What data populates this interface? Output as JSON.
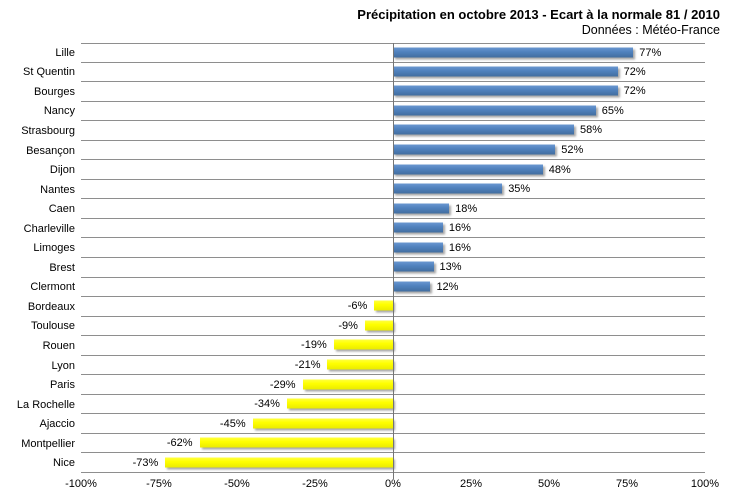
{
  "header": {
    "title": "Précipitation en octobre 2013 - Ecart à la normale 81 / 2010",
    "subtitle": "Données : Météo-France"
  },
  "chart_data": {
    "type": "bar",
    "orientation": "horizontal",
    "title": "Précipitation en octobre 2013 - Ecart à la normale 81 / 2010",
    "subtitle": "Données : Météo-France",
    "categories": [
      "Lille",
      "St Quentin",
      "Bourges",
      "Nancy",
      "Strasbourg",
      "Besançon",
      "Dijon",
      "Nantes",
      "Caen",
      "Charleville",
      "Limoges",
      "Brest",
      "Clermont",
      "Bordeaux",
      "Toulouse",
      "Rouen",
      "Lyon",
      "Paris",
      "La Rochelle",
      "Ajaccio",
      "Montpellier",
      "Nice"
    ],
    "values": [
      77,
      72,
      72,
      65,
      58,
      52,
      48,
      35,
      18,
      16,
      16,
      13,
      12,
      -6,
      -9,
      -19,
      -21,
      -29,
      -34,
      -45,
      -62,
      -73
    ],
    "unit": "%",
    "data_labels": [
      "77%",
      "72%",
      "72%",
      "65%",
      "58%",
      "52%",
      "48%",
      "35%",
      "18%",
      "16%",
      "16%",
      "13%",
      "12%",
      "-6%",
      "-9%",
      "-19%",
      "-21%",
      "-29%",
      "-34%",
      "-45%",
      "-62%",
      "-73%"
    ],
    "xlabel": "",
    "ylabel": "",
    "xlim": [
      -100,
      100
    ],
    "x_ticks": [
      "-100%",
      "-75%",
      "-50%",
      "-25%",
      "0%",
      "25%",
      "50%",
      "75%",
      "100%"
    ],
    "legend": "none",
    "grid": "horizontal-row-separators-only",
    "colors": {
      "positive_bar": "#4F81BD",
      "negative_bar": "#FFFF00",
      "gridline": "#8E8E8E",
      "zero_axis": "#757575",
      "text": "#000000",
      "background": "#FFFFFF"
    }
  }
}
